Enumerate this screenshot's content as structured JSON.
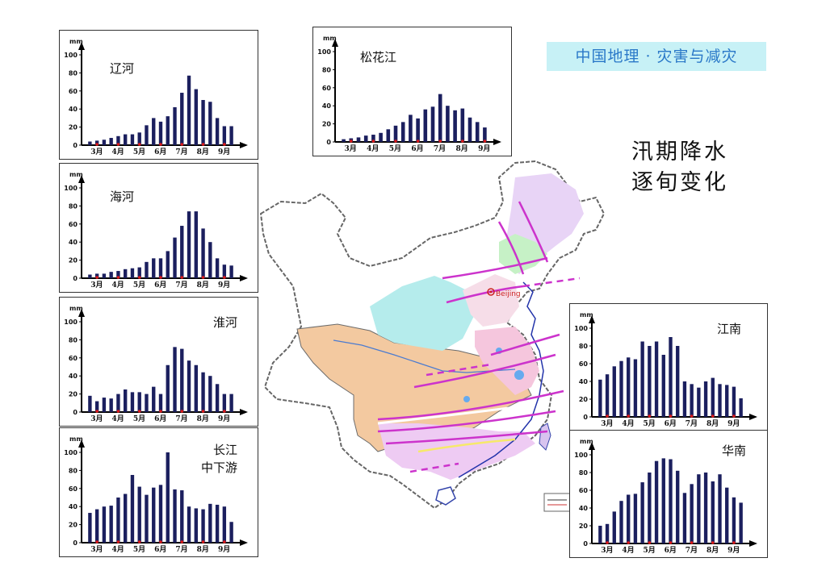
{
  "header": {
    "tag": "中国地理 · 灾害与减灾",
    "title_line1": "汛期降水",
    "title_line2": "逐旬变化"
  },
  "map": {
    "city_label": "Beijing"
  },
  "common_axis": {
    "unit": "mm",
    "y_ticks": [
      0,
      20,
      40,
      60,
      80,
      100
    ]
  },
  "chart_data": [
    {
      "type": "bar",
      "title": "辽河",
      "ylabel": "mm",
      "ylim": [
        0,
        100
      ],
      "x_month_labels": [
        "3月",
        "4月",
        "5月",
        "6月",
        "7月",
        "8月",
        "9月"
      ],
      "values": [
        4,
        5,
        6,
        8,
        10,
        12,
        12,
        14,
        22,
        30,
        26,
        32,
        42,
        58,
        77,
        62,
        50,
        48,
        30,
        21,
        21
      ]
    },
    {
      "type": "bar",
      "title": "松花江",
      "ylabel": "mm",
      "ylim": [
        0,
        100
      ],
      "x_month_labels": [
        "3月",
        "4月",
        "5月",
        "6月",
        "7月",
        "8月",
        "9月"
      ],
      "values": [
        3,
        4,
        5,
        7,
        8,
        10,
        14,
        18,
        22,
        30,
        26,
        36,
        39,
        53,
        40,
        35,
        37,
        27,
        22,
        16
      ]
    },
    {
      "type": "bar",
      "title": "海河",
      "ylabel": "mm",
      "ylim": [
        0,
        100
      ],
      "x_month_labels": [
        "3月",
        "4月",
        "5月",
        "6月",
        "7月",
        "8月",
        "9月"
      ],
      "values": [
        4,
        5,
        5,
        7,
        8,
        10,
        11,
        12,
        18,
        22,
        22,
        30,
        45,
        58,
        74,
        74,
        55,
        40,
        22,
        15,
        14
      ]
    },
    {
      "type": "bar",
      "title": "淮河",
      "ylabel": "mm",
      "ylim": [
        0,
        100
      ],
      "x_month_labels": [
        "3月",
        "4月",
        "5月",
        "6月",
        "7月",
        "8月",
        "9月"
      ],
      "values": [
        18,
        12,
        16,
        15,
        20,
        25,
        22,
        22,
        20,
        28,
        20,
        52,
        72,
        70,
        57,
        52,
        44,
        40,
        31,
        20,
        20
      ]
    },
    {
      "type": "bar",
      "title": "长江中下游",
      "ylabel": "mm",
      "ylim": [
        0,
        100
      ],
      "x_month_labels": [
        "3月",
        "4月",
        "5月",
        "6月",
        "7月",
        "8月",
        "9月"
      ],
      "values": [
        33,
        37,
        40,
        41,
        50,
        54,
        75,
        62,
        53,
        61,
        64,
        100,
        59,
        58,
        40,
        38,
        37,
        43,
        42,
        40,
        23
      ]
    },
    {
      "type": "bar",
      "title": "江南",
      "ylabel": "mm",
      "ylim": [
        0,
        100
      ],
      "x_month_labels": [
        "3月",
        "4月",
        "5月",
        "6月",
        "7月",
        "8月",
        "9月"
      ],
      "values": [
        42,
        48,
        57,
        63,
        67,
        65,
        85,
        80,
        85,
        70,
        90,
        80,
        40,
        37,
        33,
        40,
        44,
        37,
        36,
        34,
        21
      ]
    },
    {
      "type": "bar",
      "title": "华南",
      "ylabel": "mm",
      "ylim": [
        0,
        100
      ],
      "x_month_labels": [
        "3月",
        "4月",
        "5月",
        "6月",
        "7月",
        "8月",
        "9月"
      ],
      "values": [
        20,
        22,
        36,
        48,
        55,
        56,
        69,
        80,
        93,
        96,
        95,
        82,
        57,
        67,
        78,
        80,
        70,
        78,
        63,
        52,
        46
      ]
    }
  ]
}
